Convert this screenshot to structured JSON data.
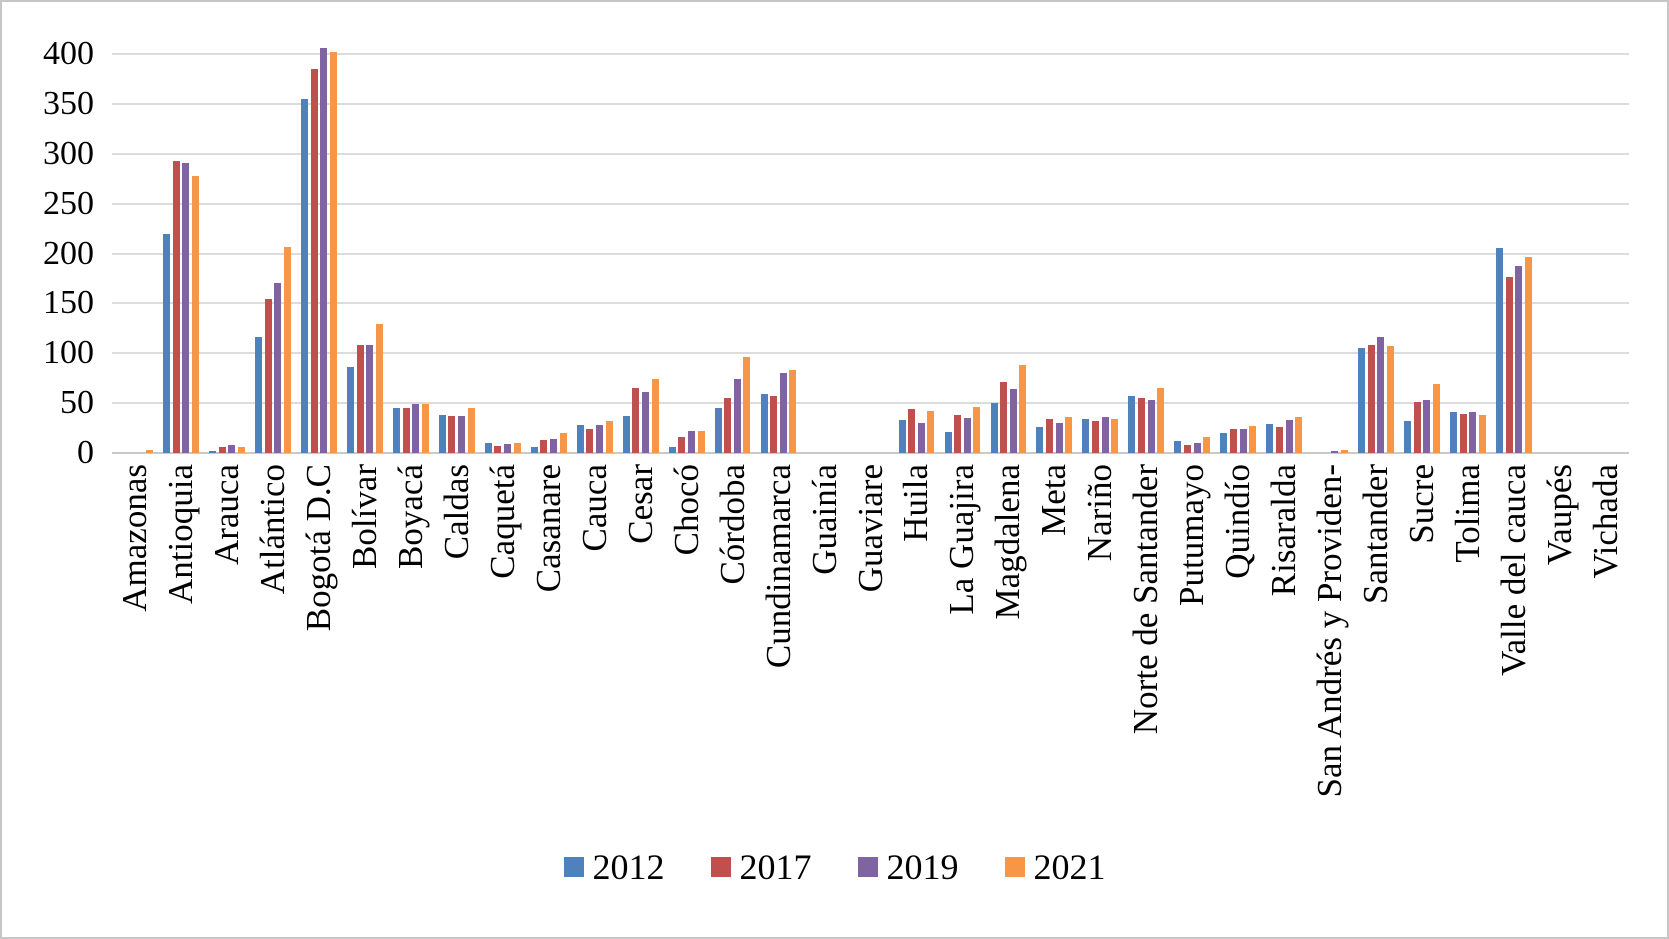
{
  "figure": {
    "background": "#ffffff",
    "border_color": "#c6c6c6",
    "gridline_color": "#dcdcdc",
    "text_color": "#000000"
  },
  "chart_data": {
    "type": "bar",
    "title": "",
    "xlabel": "",
    "ylabel": "",
    "ylim": [
      0,
      400
    ],
    "yticks": [
      0,
      50,
      100,
      150,
      200,
      250,
      300,
      350,
      400
    ],
    "grid": "horizontal",
    "legend_position": "bottom",
    "categories": [
      "Amazonas",
      "Antioquia",
      "Arauca",
      "Atlántico",
      "Bogotá D.C",
      "Bolívar",
      "Boyacá",
      "Caldas",
      "Caquetá",
      "Casanare",
      "Cauca",
      "Cesar",
      "Chocó",
      "Córdoba",
      "Cundinamarca",
      "Guainía",
      "Guaviare",
      "Huila",
      "La Guajira",
      "Magdalena",
      "Meta",
      "Nariño",
      "Norte de Santander",
      "Putumayo",
      "Quindío",
      "Risaralda",
      "San Andrés y Providen-",
      "Santander",
      "Sucre",
      "Tolima",
      "Valle del cauca",
      "Vaupés",
      "Vichada"
    ],
    "series": [
      {
        "name": "2012",
        "color": "#4F81BD",
        "values": [
          0,
          220,
          2,
          116,
          355,
          86,
          45,
          38,
          10,
          6,
          28,
          37,
          6,
          45,
          59,
          0,
          0,
          33,
          21,
          50,
          26,
          34,
          57,
          12,
          20,
          29,
          0,
          105,
          32,
          41,
          206,
          0,
          0
        ]
      },
      {
        "name": "2017",
        "color": "#C0504D",
        "values": [
          0,
          293,
          6,
          154,
          385,
          108,
          45,
          37,
          7,
          13,
          24,
          65,
          16,
          55,
          57,
          0,
          0,
          44,
          38,
          71,
          34,
          32,
          55,
          8,
          24,
          26,
          0,
          108,
          51,
          39,
          176,
          0,
          0
        ]
      },
      {
        "name": "2019",
        "color": "#8064A2",
        "values": [
          0,
          291,
          8,
          170,
          406,
          108,
          49,
          37,
          9,
          14,
          28,
          61,
          22,
          74,
          80,
          0,
          0,
          30,
          35,
          64,
          30,
          36,
          53,
          10,
          24,
          33,
          2,
          116,
          53,
          41,
          187,
          0,
          0
        ]
      },
      {
        "name": "2021",
        "color": "#F79646",
        "values": [
          3,
          278,
          6,
          207,
          402,
          129,
          49,
          45,
          10,
          20,
          32,
          74,
          22,
          96,
          83,
          0,
          0,
          42,
          46,
          88,
          36,
          34,
          65,
          16,
          27,
          36,
          3,
          107,
          69,
          38,
          196,
          0,
          0
        ]
      }
    ]
  }
}
